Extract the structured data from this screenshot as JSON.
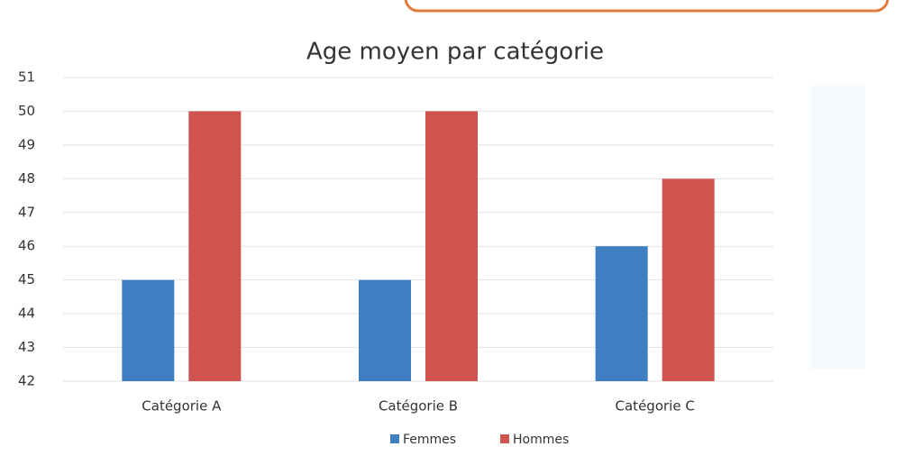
{
  "chart_data": {
    "type": "bar",
    "title": "Age moyen par catégorie",
    "categories": [
      "Catégorie A",
      "Catégorie B",
      "Catégorie C"
    ],
    "series": [
      {
        "name": "Femmes",
        "color": "#3f7fc1",
        "values": [
          45,
          45,
          46
        ]
      },
      {
        "name": "Hommes",
        "color": "#cf5450",
        "values": [
          50,
          50,
          48
        ]
      }
    ],
    "ylim": [
      42,
      51
    ],
    "yticks": [
      42,
      43,
      44,
      45,
      46,
      47,
      48,
      49,
      50,
      51
    ],
    "grid": true,
    "legend": "bottom"
  }
}
